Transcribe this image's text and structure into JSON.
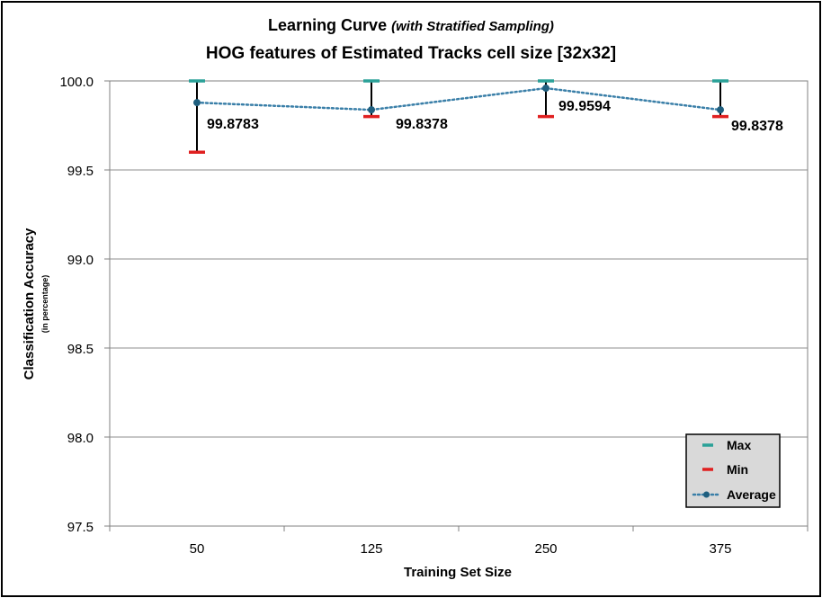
{
  "chart_data": {
    "type": "line",
    "title": "Learning Curve",
    "title_suffix": "(with Stratified Sampling)",
    "subtitle": "HOG features of Estimated Tracks cell size [32x32]",
    "xlabel": "Training Set Size",
    "ylabel": "Classification Accuracy",
    "ylabel_sub": "(in percentage)",
    "ylim": [
      97.5,
      100.0
    ],
    "yticks": [
      "100.0",
      "99.5",
      "99.0",
      "98.5",
      "98.0",
      "97.5"
    ],
    "ytick_values": [
      100.0,
      99.5,
      99.0,
      98.5,
      98.0,
      97.5
    ],
    "grid": true,
    "legend_position": "bottom-right",
    "categories": [
      "50",
      "125",
      "250",
      "375"
    ],
    "series": [
      {
        "name": "Max",
        "values": [
          100.0,
          100.0,
          100.0,
          100.0
        ],
        "color": "#2aa198"
      },
      {
        "name": "Min",
        "values": [
          99.6,
          99.8,
          99.8,
          99.8
        ],
        "color": "#e02020"
      },
      {
        "name": "Average",
        "values": [
          99.8783,
          99.8378,
          99.9594,
          99.8378
        ],
        "color": "#3a7fa8"
      }
    ],
    "data_labels": [
      "99.8783",
      "99.8378",
      "99.9594",
      "99.8378"
    ]
  }
}
